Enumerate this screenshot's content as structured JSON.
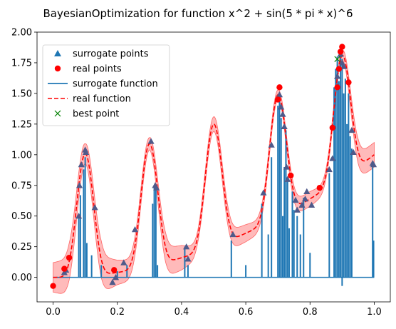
{
  "chart_data": {
    "type": "line",
    "title": "BayesianOptimization for function x^2 + sin(5 * pi * x)^6",
    "xlim": [
      -0.05,
      1.05
    ],
    "ylim": [
      -0.2,
      2.0
    ],
    "x_ticks": [
      "0.0",
      "0.2",
      "0.4",
      "0.6",
      "0.8",
      "1.0"
    ],
    "x_tick_values": [
      0,
      0.2,
      0.4,
      0.6,
      0.8,
      1.0
    ],
    "y_ticks": [
      "0.00",
      "0.25",
      "0.50",
      "0.75",
      "1.00",
      "1.25",
      "1.50",
      "1.75",
      "2.00"
    ],
    "y_tick_values": [
      0,
      0.25,
      0.5,
      0.75,
      1.0,
      1.25,
      1.5,
      1.75,
      2.0
    ],
    "legend": [
      {
        "label": "surrogate points",
        "marker": "triangle",
        "color": "#1f77b4"
      },
      {
        "label": "real points",
        "marker": "circle",
        "color": "#ff0000"
      },
      {
        "label": "surrogate function",
        "marker": "line",
        "color": "#1f77b4"
      },
      {
        "label": "real function",
        "marker": "dashed",
        "color": "#ff0000"
      },
      {
        "label": "best point",
        "marker": "x",
        "color": "#008000"
      }
    ],
    "legend_position": "top-left",
    "colors": {
      "surrogate": "#1f77b4",
      "real": "#ff0000",
      "band": "#ff6666",
      "best": "#008000",
      "surrogate_point": "#4f5a8a"
    },
    "real_function": "x^2 + sin(5*pi*x)^6",
    "uncertainty_band": [
      [
        0.0,
        0.12
      ],
      [
        0.05,
        0.15
      ],
      [
        0.1,
        0.08
      ],
      [
        0.15,
        0.15
      ],
      [
        0.2,
        0.1
      ],
      [
        0.25,
        0.08
      ],
      [
        0.3,
        0.05
      ],
      [
        0.35,
        0.12
      ],
      [
        0.4,
        0.1
      ],
      [
        0.45,
        0.05
      ],
      [
        0.5,
        0.06
      ],
      [
        0.55,
        0.08
      ],
      [
        0.6,
        0.07
      ],
      [
        0.65,
        0.05
      ],
      [
        0.7,
        0.04
      ],
      [
        0.75,
        0.06
      ],
      [
        0.8,
        0.06
      ],
      [
        0.85,
        0.04
      ],
      [
        0.9,
        0.04
      ],
      [
        0.95,
        0.1
      ],
      [
        1.0,
        0.1
      ]
    ],
    "surrogate_points": [
      [
        0.035,
        0.04
      ],
      [
        0.04,
        0.06
      ],
      [
        0.08,
        0.5
      ],
      [
        0.082,
        0.75
      ],
      [
        0.088,
        0.92
      ],
      [
        0.1,
        1.04
      ],
      [
        0.102,
        1.02
      ],
      [
        0.13,
        0.57
      ],
      [
        0.185,
        -0.04
      ],
      [
        0.195,
        0.0
      ],
      [
        0.22,
        0.12
      ],
      [
        0.255,
        0.39
      ],
      [
        0.305,
        1.11
      ],
      [
        0.318,
        0.75
      ],
      [
        0.322,
        0.73
      ],
      [
        0.415,
        0.25
      ],
      [
        0.42,
        0.15
      ],
      [
        0.56,
        0.35
      ],
      [
        0.655,
        0.69
      ],
      [
        0.68,
        1.08
      ],
      [
        0.705,
        1.49
      ],
      [
        0.71,
        1.39
      ],
      [
        0.715,
        1.33
      ],
      [
        0.72,
        1.23
      ],
      [
        0.727,
        0.9
      ],
      [
        0.73,
        0.8
      ],
      [
        0.755,
        0.63
      ],
      [
        0.76,
        0.55
      ],
      [
        0.775,
        0.59
      ],
      [
        0.785,
        0.64
      ],
      [
        0.79,
        0.7
      ],
      [
        0.805,
        0.59
      ],
      [
        0.86,
        0.88
      ],
      [
        0.87,
        0.97
      ],
      [
        0.885,
        1.64
      ],
      [
        0.895,
        1.82
      ],
      [
        0.9,
        1.75
      ],
      [
        0.905,
        1.72
      ],
      [
        0.93,
        1.2
      ],
      [
        0.935,
        1.02
      ],
      [
        0.995,
        0.93
      ],
      [
        0.998,
        0.92
      ]
    ],
    "real_points": [
      [
        0.0,
        -0.07
      ],
      [
        0.035,
        0.07
      ],
      [
        0.05,
        0.16
      ],
      [
        0.19,
        0.06
      ],
      [
        0.7,
        1.45
      ],
      [
        0.705,
        1.55
      ],
      [
        0.74,
        0.83
      ],
      [
        0.83,
        0.73
      ],
      [
        0.87,
        1.22
      ],
      [
        0.885,
        1.55
      ],
      [
        0.89,
        1.7
      ],
      [
        0.895,
        1.84
      ],
      [
        0.9,
        1.88
      ],
      [
        0.92,
        1.59
      ]
    ],
    "best_point": [
      0.885,
      1.78
    ],
    "surrogate_spikes": [
      [
        0.08,
        0.48
      ],
      [
        0.085,
        0.67
      ],
      [
        0.095,
        0.88
      ],
      [
        0.1,
        0.98
      ],
      [
        0.105,
        0.28
      ],
      [
        0.12,
        0.18
      ],
      [
        0.15,
        0.1
      ],
      [
        0.2,
        0.05
      ],
      [
        0.23,
        0.1
      ],
      [
        0.31,
        0.6
      ],
      [
        0.315,
        0.75
      ],
      [
        0.32,
        0.72
      ],
      [
        0.325,
        0.1
      ],
      [
        0.41,
        0.25
      ],
      [
        0.42,
        0.1
      ],
      [
        0.555,
        0.3
      ],
      [
        0.6,
        0.1
      ],
      [
        0.65,
        0.6
      ],
      [
        0.67,
        0.35
      ],
      [
        0.68,
        0.98
      ],
      [
        0.7,
        1.4
      ],
      [
        0.705,
        1.5
      ],
      [
        0.71,
        1.3
      ],
      [
        0.715,
        0.5
      ],
      [
        0.72,
        0.9
      ],
      [
        0.725,
        1.2
      ],
      [
        0.73,
        0.8
      ],
      [
        0.735,
        0.4
      ],
      [
        0.745,
        0.7
      ],
      [
        0.75,
        0.55
      ],
      [
        0.76,
        0.5
      ],
      [
        0.77,
        0.35
      ],
      [
        0.78,
        0.65
      ],
      [
        0.8,
        0.2
      ],
      [
        0.86,
        0.85
      ],
      [
        0.875,
        1.55
      ],
      [
        0.88,
        1.7
      ],
      [
        0.885,
        1.8
      ],
      [
        0.89,
        1.6
      ],
      [
        0.895,
        1.85
      ],
      [
        0.9,
        1.78
      ],
      [
        0.905,
        1.5
      ],
      [
        0.91,
        1.62
      ],
      [
        0.915,
        1.25
      ],
      [
        0.92,
        1.5
      ],
      [
        0.925,
        1.15
      ],
      [
        0.93,
        1.05
      ],
      [
        0.995,
        0.9
      ],
      [
        0.998,
        0.3
      ]
    ],
    "negative_spikes": [
      [
        0.9,
        -0.07
      ]
    ]
  }
}
